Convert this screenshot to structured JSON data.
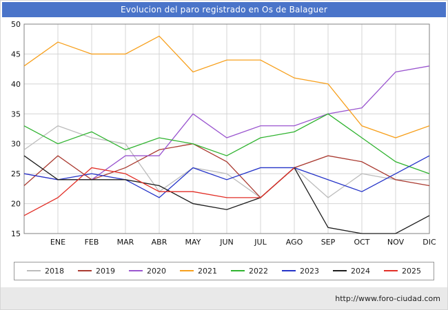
{
  "title_bar": {
    "bg_color": "#4a74c9"
  },
  "footer": {
    "url": "http://www.foro-ciudad.com"
  },
  "chart_data": {
    "type": "line",
    "title": "Evolucion del paro registrado en Os de Balaguer",
    "grid": true,
    "legend_position": "bottom",
    "y_axis": {
      "min": 15,
      "max": 50,
      "step": 5
    },
    "categories": [
      "",
      "ENE",
      "FEB",
      "MAR",
      "ABR",
      "MAY",
      "JUN",
      "JUL",
      "AGO",
      "SEP",
      "OCT",
      "NOV",
      "DIC"
    ],
    "series": [
      {
        "name": "2018",
        "color": "#bcbcbc",
        "values": [
          29,
          33,
          31,
          30,
          22,
          26,
          25,
          21,
          26,
          21,
          25,
          24,
          24
        ]
      },
      {
        "name": "2019",
        "color": "#aa3a30",
        "values": [
          23,
          28,
          24,
          26,
          29,
          30,
          27,
          21,
          26,
          28,
          27,
          24,
          23
        ]
      },
      {
        "name": "2020",
        "color": "#9a55cf",
        "values": [
          25,
          24,
          24,
          28,
          28,
          35,
          31,
          33,
          33,
          35,
          36,
          42,
          43
        ]
      },
      {
        "name": "2021",
        "color": "#f7a01d",
        "values": [
          43,
          47,
          45,
          45,
          48,
          42,
          44,
          44,
          41,
          40,
          33,
          31,
          33
        ]
      },
      {
        "name": "2022",
        "color": "#2fb32f",
        "values": [
          33,
          30,
          32,
          29,
          31,
          30,
          28,
          31,
          32,
          35,
          31,
          27,
          25
        ]
      },
      {
        "name": "2023",
        "color": "#2433c8",
        "values": [
          25,
          24,
          25,
          24,
          21,
          26,
          24,
          26,
          26,
          24,
          22,
          25,
          28
        ]
      },
      {
        "name": "2024",
        "color": "#1c1c1c",
        "values": [
          28,
          24,
          24,
          24,
          23,
          20,
          19,
          21,
          26,
          16,
          15,
          15,
          18
        ]
      },
      {
        "name": "2025",
        "color": "#e22d25",
        "values": [
          18,
          21,
          26,
          25,
          22,
          22,
          21,
          21,
          26
        ]
      }
    ]
  }
}
